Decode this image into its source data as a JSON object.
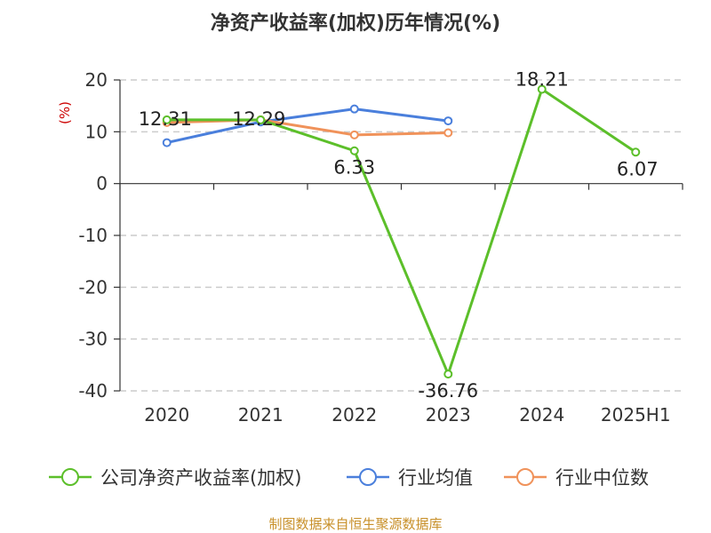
{
  "chart_data": {
    "type": "line",
    "title": "净资产收益率(加权)历年情况(%)",
    "ylabel": "(%)",
    "xlabel": "",
    "categories": [
      "2020",
      "2021",
      "2022",
      "2023",
      "2024",
      "2025H1"
    ],
    "ylim": [
      -40,
      20
    ],
    "yticks": [
      20,
      10,
      0,
      -10,
      -20,
      -30,
      -40
    ],
    "grid": true,
    "legend_position": "bottom",
    "series": [
      {
        "name": "公司净资产收益率(加权)",
        "color": "#5cbf2a",
        "values": [
          12.31,
          12.29,
          6.33,
          -36.76,
          18.21,
          6.07
        ],
        "labels": [
          "12.31",
          "12.29",
          "6.33",
          "-36.76",
          "18.21",
          "6.07"
        ]
      },
      {
        "name": "行业均值",
        "color": "#4a7fdc",
        "values": [
          7.9,
          11.9,
          14.4,
          12.1,
          null,
          null
        ]
      },
      {
        "name": "行业中位数",
        "color": "#f0925a",
        "values": [
          11.8,
          12.3,
          9.4,
          9.8,
          null,
          null
        ]
      }
    ],
    "source": "制图数据来自恒生聚源数据库"
  }
}
